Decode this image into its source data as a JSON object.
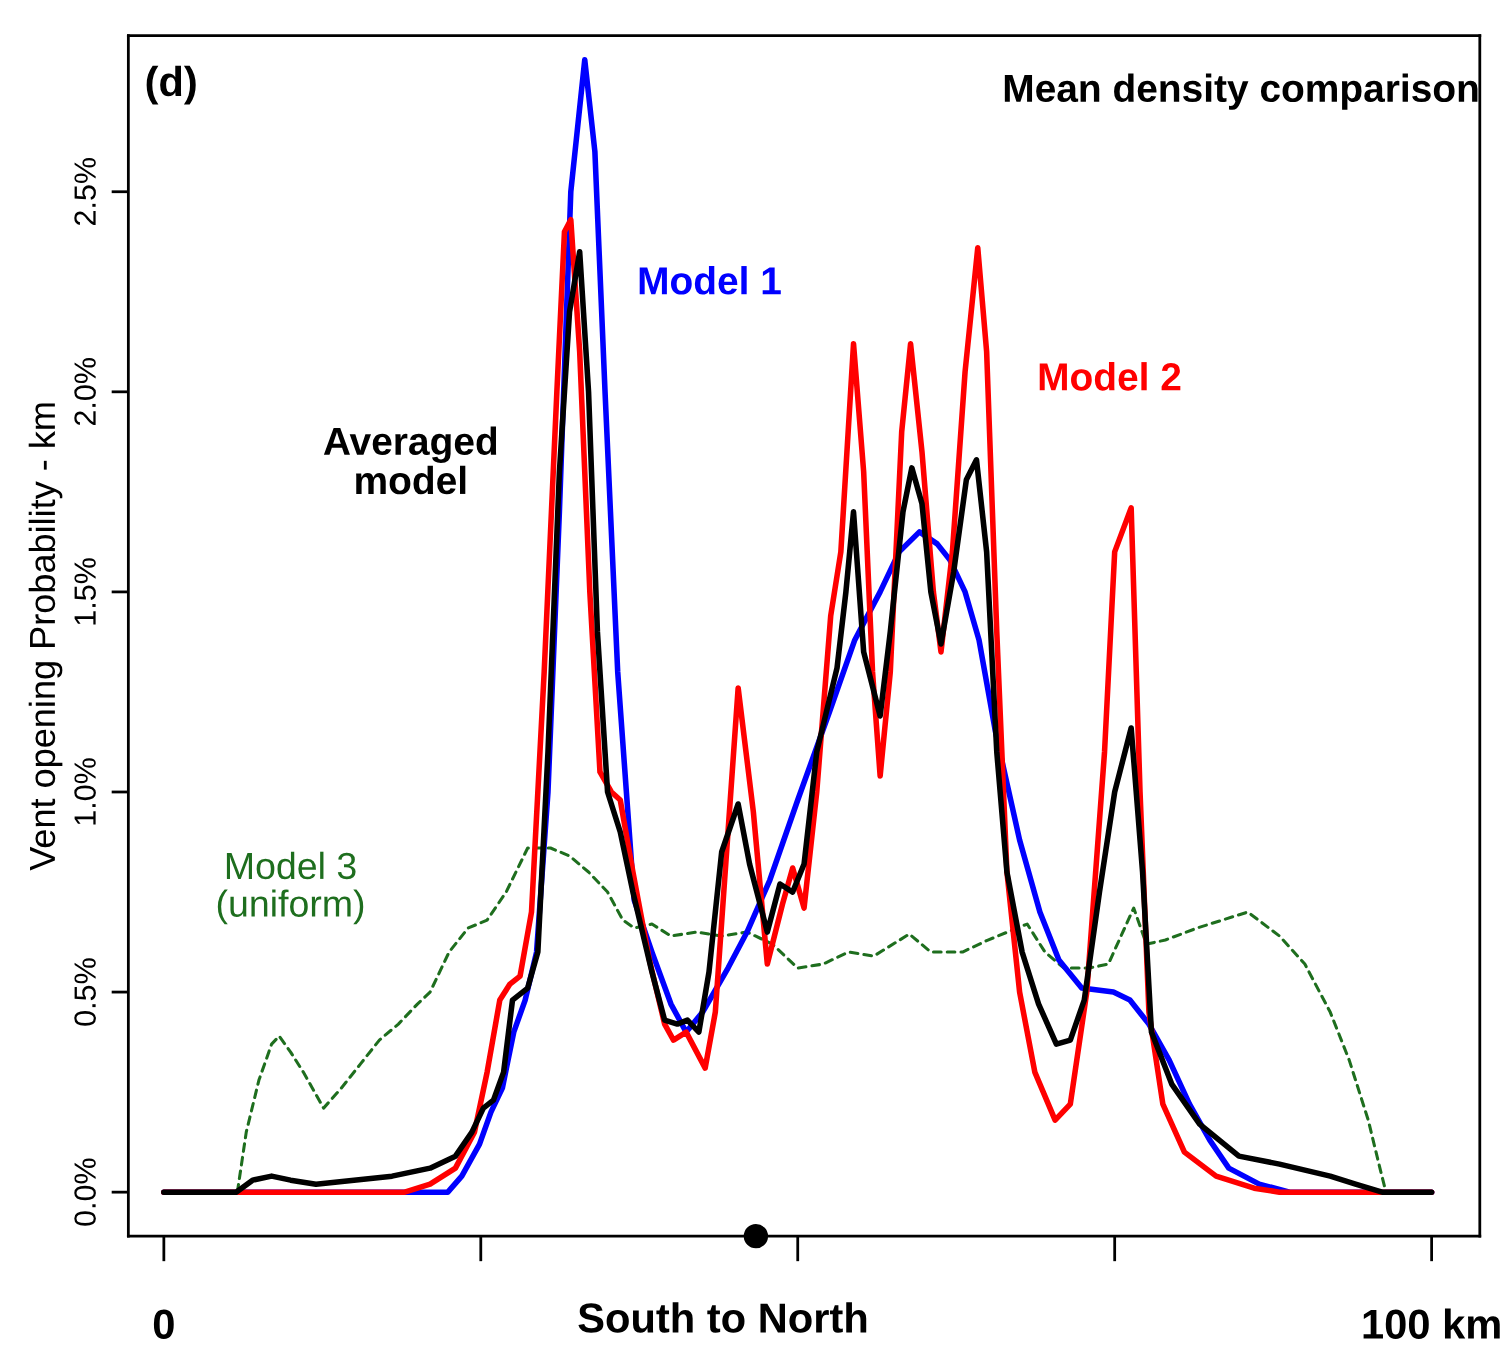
{
  "chart_data": {
    "type": "line",
    "title": "Mean density comparison",
    "xlabel": "South to North",
    "ylabel": "Vent opening Probability - km",
    "annotations": [
      "(d)"
    ],
    "xlim": [
      -2.8,
      103.8
    ],
    "ylim": [
      -0.11,
      2.89
    ],
    "xticks": [
      {
        "value": 0,
        "label": "0"
      },
      {
        "value": 25,
        "label": null
      },
      {
        "value": 50,
        "label": null
      },
      {
        "value": 75,
        "label": null
      },
      {
        "value": 100,
        "label": "100 km"
      }
    ],
    "yticks": [
      {
        "value": 0,
        "label": "0.0%"
      },
      {
        "value": 0.5,
        "label": "0.5%"
      },
      {
        "value": 1.0,
        "label": "1.0%"
      },
      {
        "value": 1.5,
        "label": "1.5%"
      },
      {
        "value": 2.0,
        "label": "2.0%"
      },
      {
        "value": 2.5,
        "label": "2.5%"
      }
    ],
    "grid": false,
    "legend": false,
    "series": [
      {
        "name": "Model 3\n(uniform)",
        "color": "#1e6e1e",
        "line_style": "dashed",
        "x": [
          5.8,
          6.5,
          7.5,
          8.5,
          9.1,
          10,
          11,
          12.6,
          14,
          15.5,
          17,
          18.5,
          20,
          21,
          22.5,
          24,
          25.5,
          27,
          28.7,
          30.5,
          32,
          33.5,
          35,
          36.2,
          37.1,
          38.5,
          40,
          42,
          44,
          46,
          48,
          50,
          52,
          54,
          56,
          58.8,
          60.5,
          63,
          65,
          68.1,
          69.5,
          71,
          73,
          74.5,
          76.5,
          77.5,
          79,
          81.5,
          83.5,
          85.5,
          88,
          90,
          92,
          93.5,
          95,
          96,
          96.4
        ],
        "values": [
          0,
          0.15,
          0.28,
          0.37,
          0.39,
          0.35,
          0.3,
          0.21,
          0.26,
          0.32,
          0.38,
          0.42,
          0.47,
          0.5,
          0.6,
          0.66,
          0.68,
          0.75,
          0.86,
          0.86,
          0.84,
          0.8,
          0.75,
          0.68,
          0.66,
          0.67,
          0.64,
          0.65,
          0.64,
          0.65,
          0.62,
          0.56,
          0.57,
          0.6,
          0.59,
          0.645,
          0.6,
          0.6,
          0.63,
          0.67,
          0.6,
          0.56,
          0.56,
          0.57,
          0.71,
          0.62,
          0.63,
          0.66,
          0.68,
          0.7,
          0.64,
          0.57,
          0.45,
          0.33,
          0.18,
          0.05,
          0
        ]
      },
      {
        "name": "Model 1",
        "color": "#0000ff",
        "line_style": "solid",
        "x": [
          0,
          22.4,
          23.5,
          24.9,
          25.8,
          26.7,
          27.6,
          28.5,
          29.4,
          30.3,
          31.2,
          32.1,
          33.2,
          34,
          34.8,
          35.8,
          37.1,
          38.5,
          40,
          41.2,
          42.5,
          44.5,
          46,
          47.8,
          50,
          52.5,
          54.5,
          56.5,
          58,
          59.6,
          61,
          62,
          63.2,
          64.3,
          65.6,
          67.5,
          69.1,
          70.6,
          72.4,
          74.9,
          76.2,
          77.7,
          79.3,
          80.9,
          82.5,
          84,
          86.4,
          88.8,
          100
        ],
        "values": [
          0,
          0,
          0.04,
          0.12,
          0.2,
          0.26,
          0.4,
          0.48,
          0.6,
          1.0,
          1.7,
          2.5,
          2.83,
          2.6,
          2.0,
          1.3,
          0.73,
          0.6,
          0.47,
          0.4,
          0.45,
          0.56,
          0.65,
          0.78,
          0.98,
          1.2,
          1.38,
          1.5,
          1.6,
          1.65,
          1.62,
          1.58,
          1.5,
          1.38,
          1.15,
          0.88,
          0.7,
          0.58,
          0.51,
          0.5,
          0.48,
          0.42,
          0.33,
          0.22,
          0.13,
          0.06,
          0.02,
          0,
          0
        ]
      },
      {
        "name": "Model 2",
        "color": "#ff0000",
        "line_style": "solid",
        "x": [
          0,
          19,
          21,
          23,
          24.5,
          25.5,
          26.5,
          27.3,
          28.1,
          29,
          30,
          31,
          31.6,
          32.1,
          32.8,
          33.6,
          34.4,
          35.3,
          36,
          37,
          38.3,
          39.5,
          40.2,
          41.2,
          42.7,
          43.5,
          44.5,
          45.3,
          46.5,
          47.6,
          48.8,
          49.6,
          50.5,
          51.5,
          52.6,
          53.4,
          54.4,
          55.2,
          55.9,
          56.5,
          57.3,
          58.2,
          58.9,
          59.8,
          60.7,
          61.3,
          62.2,
          63.2,
          64.2,
          64.9,
          65.7,
          66.5,
          67.5,
          68.7,
          70.3,
          71.5,
          72.8,
          74.2,
          75,
          76.3,
          77,
          77.7,
          78.8,
          80.5,
          83,
          86,
          88,
          100
        ],
        "values": [
          0,
          0,
          0.02,
          0.06,
          0.15,
          0.3,
          0.48,
          0.52,
          0.54,
          0.7,
          1.3,
          2.0,
          2.4,
          2.43,
          2.1,
          1.5,
          1.05,
          1.0,
          0.98,
          0.8,
          0.58,
          0.42,
          0.38,
          0.4,
          0.31,
          0.45,
          0.9,
          1.26,
          0.95,
          0.57,
          0.72,
          0.81,
          0.71,
          1.0,
          1.44,
          1.6,
          2.12,
          1.8,
          1.3,
          1.04,
          1.3,
          1.9,
          2.12,
          1.85,
          1.5,
          1.35,
          1.6,
          2.05,
          2.36,
          2.1,
          1.4,
          0.8,
          0.5,
          0.3,
          0.18,
          0.22,
          0.5,
          1.1,
          1.6,
          1.71,
          1.0,
          0.45,
          0.22,
          0.1,
          0.04,
          0.01,
          0,
          0
        ]
      },
      {
        "name": "Averaged\nmodel",
        "color": "#000000",
        "line_style": "solid",
        "x": [
          0,
          5.7,
          7,
          8.5,
          10,
          12,
          15,
          18,
          21,
          23,
          24.3,
          25.2,
          26,
          26.8,
          27.5,
          28.7,
          29.5,
          30.3,
          31.2,
          32,
          32.8,
          33.5,
          34.2,
          35,
          36,
          37,
          38.5,
          39.5,
          40.5,
          41.3,
          42.2,
          43,
          44,
          45.3,
          46.2,
          47.6,
          48.6,
          49.6,
          50.5,
          51.5,
          53.1,
          53.8,
          54.4,
          55.2,
          56.5,
          57.3,
          58.3,
          59,
          59.8,
          60.5,
          61.3,
          62.3,
          63.3,
          64.1,
          64.9,
          65.7,
          66.5,
          67.7,
          69,
          70.4,
          71.5,
          72.6,
          73.8,
          75,
          76.3,
          77.2,
          77.9,
          79.5,
          81.7,
          84.8,
          88,
          92,
          94,
          96.1,
          100
        ],
        "values": [
          0,
          0,
          0.03,
          0.04,
          0.03,
          0.02,
          0.03,
          0.04,
          0.06,
          0.09,
          0.15,
          0.21,
          0.23,
          0.3,
          0.48,
          0.51,
          0.6,
          1.1,
          1.8,
          2.2,
          2.35,
          2.0,
          1.4,
          1.0,
          0.9,
          0.75,
          0.55,
          0.43,
          0.42,
          0.43,
          0.4,
          0.55,
          0.85,
          0.97,
          0.82,
          0.65,
          0.77,
          0.75,
          0.82,
          1.1,
          1.31,
          1.5,
          1.7,
          1.35,
          1.19,
          1.4,
          1.7,
          1.81,
          1.72,
          1.5,
          1.37,
          1.55,
          1.78,
          1.83,
          1.6,
          1.1,
          0.8,
          0.6,
          0.47,
          0.37,
          0.38,
          0.48,
          0.75,
          1.0,
          1.16,
          0.8,
          0.4,
          0.27,
          0.17,
          0.09,
          0.07,
          0.04,
          0.02,
          0,
          0
        ]
      },
      {
        "type": "scatter",
        "color": "#000000",
        "marker": "circle",
        "x": [
          46.7
        ],
        "values": [
          -0.11
        ]
      }
    ]
  }
}
